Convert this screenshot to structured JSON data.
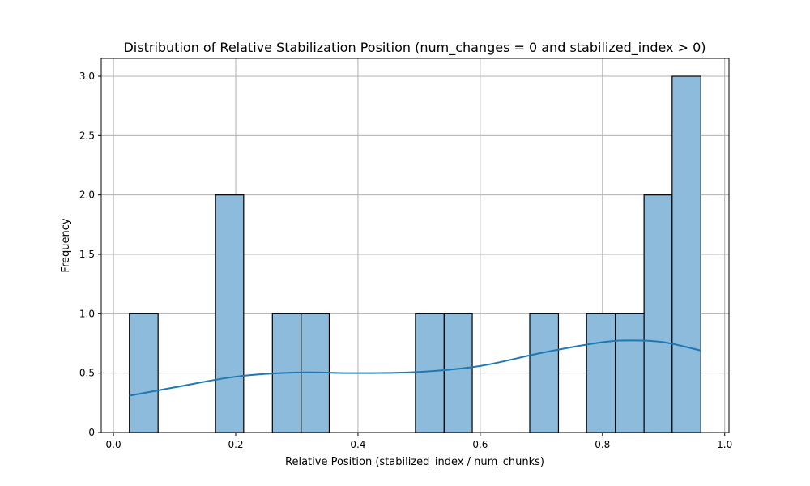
{
  "chart_data": {
    "type": "bar",
    "title": "Distribution of Relative Stabilization Position (num_changes = 0 and stabilized_index > 0)",
    "xlabel": "Relative Position (stabilized_index / num_chunks)",
    "ylabel": "Frequency",
    "xlim": [
      -0.02,
      1.007
    ],
    "ylim": [
      0,
      3.15
    ],
    "grid": true,
    "xticks": [
      {
        "value": 0.0,
        "label": "0.0"
      },
      {
        "value": 0.2,
        "label": "0.2"
      },
      {
        "value": 0.4,
        "label": "0.4"
      },
      {
        "value": 0.6,
        "label": "0.6"
      },
      {
        "value": 0.8,
        "label": "0.8"
      },
      {
        "value": 1.0,
        "label": "1.0"
      }
    ],
    "yticks": [
      {
        "value": 0,
        "label": "0"
      },
      {
        "value": 0.5,
        "label": "0.5"
      },
      {
        "value": 1.0,
        "label": "1.0"
      },
      {
        "value": 1.5,
        "label": "1.5"
      },
      {
        "value": 2.0,
        "label": "2.0"
      },
      {
        "value": 2.5,
        "label": "2.5"
      },
      {
        "value": 3.0,
        "label": "3.0"
      }
    ],
    "bins": [
      {
        "x0": 0.026,
        "x1": 0.073,
        "count": 1
      },
      {
        "x0": 0.167,
        "x1": 0.213,
        "count": 2
      },
      {
        "x0": 0.26,
        "x1": 0.307,
        "count": 1
      },
      {
        "x0": 0.307,
        "x1": 0.353,
        "count": 1
      },
      {
        "x0": 0.494,
        "x1": 0.541,
        "count": 1
      },
      {
        "x0": 0.541,
        "x1": 0.587,
        "count": 1
      },
      {
        "x0": 0.681,
        "x1": 0.728,
        "count": 1
      },
      {
        "x0": 0.774,
        "x1": 0.821,
        "count": 1
      },
      {
        "x0": 0.821,
        "x1": 0.868,
        "count": 1
      },
      {
        "x0": 0.868,
        "x1": 0.914,
        "count": 2
      },
      {
        "x0": 0.914,
        "x1": 0.961,
        "count": 3
      }
    ],
    "kde": {
      "x": [
        0.026,
        0.1,
        0.2,
        0.3,
        0.4,
        0.5,
        0.6,
        0.7,
        0.8,
        0.85,
        0.9,
        0.961
      ],
      "y": [
        0.31,
        0.38,
        0.47,
        0.505,
        0.5,
        0.51,
        0.56,
        0.67,
        0.76,
        0.775,
        0.76,
        0.69
      ]
    },
    "colors": {
      "bar_fill": "#8cbbdb",
      "bar_edge": "#000000",
      "kde_line": "#1f77b4",
      "grid": "#b0b0b0"
    }
  }
}
